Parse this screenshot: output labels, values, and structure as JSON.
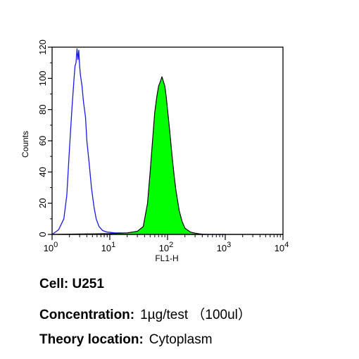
{
  "chart_data": {
    "type": "area",
    "xlabel": "FL1-H",
    "ylabel": "Counts",
    "xscale": "log",
    "xlim": [
      1,
      10000
    ],
    "ylim": [
      0,
      120
    ],
    "x_tick_labels": [
      {
        "base": "10",
        "exp": "0"
      },
      {
        "base": "10",
        "exp": "1"
      },
      {
        "base": "10",
        "exp": "2"
      },
      {
        "base": "10",
        "exp": "3"
      },
      {
        "base": "10",
        "exp": "4"
      }
    ],
    "y_ticks": [
      0,
      20,
      40,
      60,
      80,
      100,
      120
    ],
    "y_tick_labels": [
      "0",
      "20",
      "40",
      "60",
      "80",
      "100",
      "120"
    ],
    "series": [
      {
        "style": "outline",
        "color": "#1a1ae6",
        "x": [
          1,
          1.3,
          1.6,
          1.8,
          2.0,
          2.2,
          2.4,
          2.5,
          2.6,
          2.7,
          2.8,
          2.9,
          3.0,
          3.1,
          3.3,
          3.5,
          3.8,
          4.0,
          4.4,
          4.8,
          5.3,
          5.8,
          6.5,
          7.5,
          9,
          12,
          20,
          40,
          100,
          300,
          1000
        ],
        "y": [
          0,
          3,
          10,
          25,
          55,
          80,
          100,
          108,
          110,
          119,
          112,
          118,
          108,
          102,
          95,
          85,
          75,
          60,
          45,
          30,
          18,
          10,
          5,
          2.5,
          1.5,
          1,
          0.8,
          0.5,
          0.2,
          0,
          0
        ]
      },
      {
        "style": "filled",
        "color": "#00ff00",
        "x": [
          1,
          10,
          20,
          30,
          38,
          45,
          50,
          55,
          60,
          65,
          70,
          75,
          80,
          85,
          90,
          95,
          100,
          110,
          120,
          130,
          140,
          160,
          180,
          200,
          250,
          300,
          350,
          400,
          500,
          1000,
          10000
        ],
        "y": [
          0,
          0.5,
          1,
          2,
          5,
          20,
          40,
          60,
          78,
          88,
          95,
          98,
          101,
          98,
          95,
          88,
          80,
          65,
          50,
          38,
          28,
          15,
          8,
          4,
          1.5,
          0.8,
          0.4,
          0.2,
          0,
          0,
          0
        ]
      }
    ]
  },
  "caption": {
    "cell_label": "Cell:",
    "cell_value": "U251",
    "concentration_label": "Concentration:",
    "concentration_value": "1µg/test （100ul）",
    "location_label": "Theory location:",
    "location_value": "Cytoplasm"
  }
}
